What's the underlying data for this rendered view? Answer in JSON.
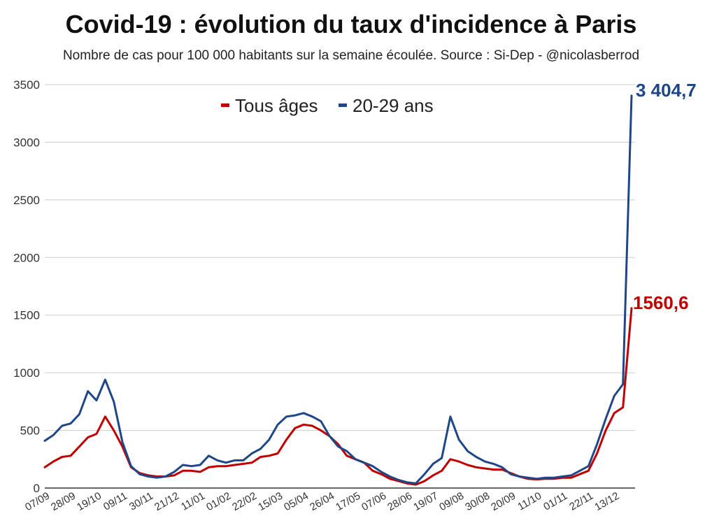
{
  "chart_data": {
    "type": "line",
    "title": "Covid-19 : évolution du taux d'incidence à Paris",
    "subtitle": "Nombre de cas pour 100 000 habitants sur la semaine écoulée. Source : Si-Dep - @nicolasberrod",
    "xlabel": "",
    "ylabel": "",
    "ylim": [
      0,
      3500
    ],
    "yticks": [
      "0",
      "500",
      "1000",
      "1500",
      "2000",
      "2500",
      "3000",
      "3500"
    ],
    "x_tick_labels": [
      "07/09",
      "28/09",
      "19/10",
      "09/11",
      "30/11",
      "21/12",
      "11/01",
      "01/02",
      "22/02",
      "15/03",
      "05/04",
      "26/04",
      "17/05",
      "07/06",
      "28/06",
      "19/07",
      "09/08",
      "30/08",
      "20/09",
      "11/10",
      "01/11",
      "22/11",
      "13/12"
    ],
    "weeks_after_start": [
      0,
      1,
      2,
      3,
      4,
      5,
      6,
      7,
      8,
      9,
      10,
      11,
      12,
      13,
      14,
      15,
      16,
      17,
      18,
      19,
      20,
      21,
      22,
      23,
      24,
      25,
      26,
      27,
      28,
      29,
      30,
      31,
      32,
      33,
      34,
      35,
      36,
      37,
      38,
      39,
      40,
      41,
      42,
      43,
      44,
      45,
      46,
      47,
      48,
      49,
      50,
      51,
      52,
      53,
      54,
      55,
      56,
      57,
      58,
      59,
      60,
      61,
      62,
      63,
      64,
      65,
      66,
      67,
      68
    ],
    "grid": true,
    "legend_position": "top-center",
    "series": [
      {
        "name": "Tous âges",
        "color": "#c00000",
        "end_label": "1560,6",
        "values": [
          180,
          230,
          270,
          280,
          360,
          440,
          470,
          620,
          500,
          360,
          180,
          130,
          110,
          100,
          100,
          110,
          150,
          150,
          140,
          180,
          190,
          190,
          200,
          210,
          220,
          270,
          280,
          300,
          420,
          520,
          550,
          540,
          500,
          450,
          380,
          280,
          250,
          220,
          150,
          120,
          80,
          60,
          40,
          30,
          60,
          110,
          150,
          250,
          230,
          200,
          180,
          170,
          160,
          160,
          130,
          100,
          80,
          75,
          80,
          80,
          90,
          90,
          120,
          150,
          300,
          500,
          650,
          700,
          1560.6
        ]
      },
      {
        "name": "20-29 ans",
        "color": "#1f4788",
        "end_label": "3 404,7",
        "values": [
          410,
          460,
          540,
          560,
          640,
          840,
          760,
          940,
          750,
          400,
          190,
          120,
          100,
          90,
          100,
          140,
          200,
          190,
          200,
          280,
          240,
          220,
          240,
          240,
          300,
          340,
          420,
          550,
          620,
          630,
          650,
          620,
          580,
          450,
          360,
          320,
          250,
          220,
          190,
          140,
          100,
          70,
          50,
          40,
          120,
          210,
          260,
          620,
          420,
          320,
          270,
          230,
          210,
          180,
          120,
          100,
          90,
          80,
          90,
          90,
          100,
          110,
          150,
          190,
          380,
          600,
          800,
          900,
          3404.7
        ]
      }
    ]
  }
}
